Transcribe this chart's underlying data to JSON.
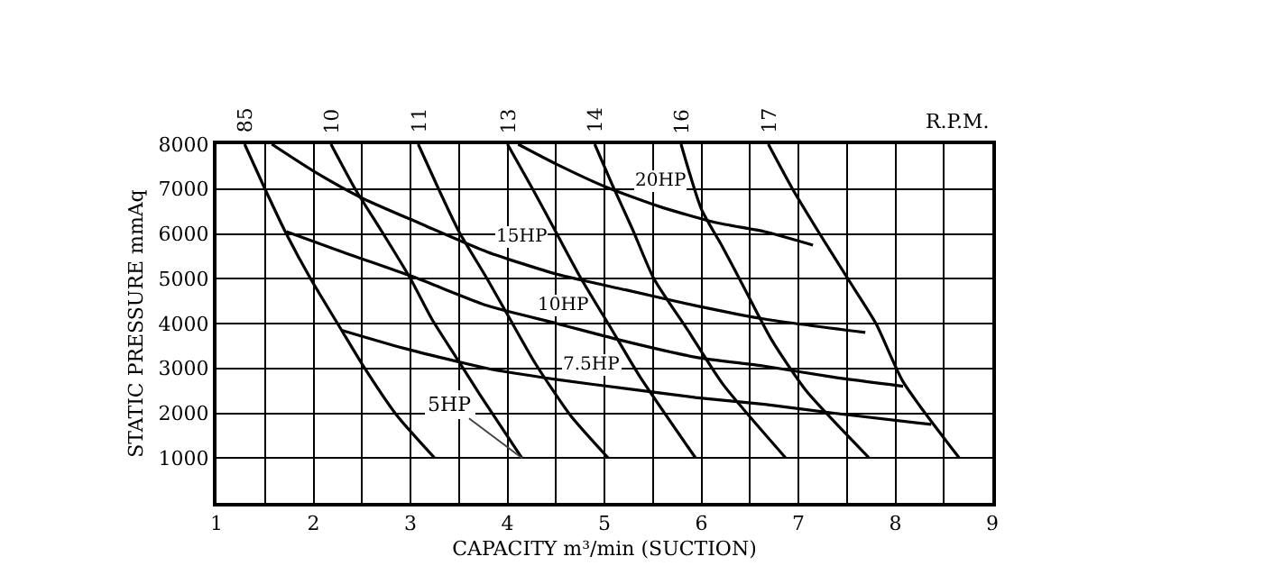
{
  "chart_data": {
    "type": "line",
    "xlabel": "CAPACITY m³/min (SUCTION)",
    "ylabel": "STATIC PRESSURE mmAq",
    "xlim": [
      1,
      9
    ],
    "ylim": [
      0,
      8000
    ],
    "xticks": [
      1,
      {
        "value": 1.5,
        "label": null
      },
      2,
      {
        "value": 2.5,
        "label": null
      },
      3,
      {
        "value": 3.5,
        "label": null
      },
      4,
      {
        "value": 4.5,
        "label": null
      },
      5,
      {
        "value": 5.5,
        "label": null
      },
      6,
      {
        "value": 6.5,
        "label": null
      },
      7,
      {
        "value": 7.5,
        "label": null
      },
      8,
      {
        "value": 8.5,
        "label": null
      },
      9
    ],
    "yticks": [
      1000,
      2000,
      3000,
      4000,
      5000,
      6000,
      7000,
      8000
    ],
    "grid": true,
    "legend": false,
    "marker": "none",
    "line_style": "solid",
    "color": "#000000",
    "series": [
      {
        "name": "20HP",
        "x": [
          4.11,
          4.51,
          5.01,
          5.58,
          6.15,
          6.65,
          7.15
        ],
        "values": [
          8000,
          7550,
          7050,
          6600,
          6250,
          6050,
          5750
        ]
      },
      {
        "name": "15HP",
        "x": [
          1.57,
          2.0,
          2.5,
          3.08,
          3.79,
          4.51,
          5.22,
          5.94,
          6.65,
          7.69
        ],
        "values": [
          8000,
          7400,
          6800,
          6250,
          5600,
          5100,
          4750,
          4400,
          4100,
          3800
        ]
      },
      {
        "name": "10HP",
        "x": [
          1.72,
          2.36,
          3.08,
          3.79,
          4.51,
          5.22,
          5.94,
          6.65,
          7.37,
          8.08
        ],
        "values": [
          6050,
          5550,
          5000,
          4400,
          4000,
          3600,
          3250,
          3050,
          2800,
          2600
        ]
      },
      {
        "name": "7.5HP",
        "x": [
          2.29,
          2.93,
          3.79,
          4.51,
          5.22,
          5.94,
          6.65,
          7.37,
          8.37
        ],
        "values": [
          3850,
          3450,
          3000,
          2750,
          2550,
          2350,
          2200,
          2000,
          1750
        ]
      },
      {
        "name": "85",
        "x": [
          1.29,
          1.5,
          1.72,
          1.97,
          2.29,
          2.5,
          2.86,
          3.25
        ],
        "values": [
          8000,
          7000,
          6000,
          5000,
          3850,
          3100,
          1950,
          1000
        ]
      },
      {
        "name": "10",
        "x": [
          2.18,
          2.43,
          2.72,
          3.0,
          3.22,
          3.47,
          3.72,
          4.15
        ],
        "values": [
          8000,
          7000,
          6000,
          5000,
          4100,
          3250,
          2400,
          1000
        ]
      },
      {
        "name": "11",
        "x": [
          3.08,
          3.29,
          3.5,
          3.79,
          4.0,
          4.29,
          4.65,
          5.04
        ],
        "values": [
          8000,
          7000,
          6050,
          5000,
          4200,
          3100,
          1950,
          1000
        ]
      },
      {
        "name": "13",
        "x": [
          4.0,
          4.26,
          4.51,
          4.76,
          5.08,
          5.37,
          5.94
        ],
        "values": [
          8000,
          7000,
          6000,
          5000,
          3850,
          2800,
          1000
        ]
      },
      {
        "name": "14",
        "x": [
          4.9,
          5.08,
          5.29,
          5.51,
          5.86,
          6.22,
          6.87
        ],
        "values": [
          8000,
          7100,
          6100,
          5000,
          3850,
          2650,
          1000
        ]
      },
      {
        "name": "16",
        "x": [
          5.79,
          6.0,
          6.22,
          6.44,
          6.72,
          7.08,
          7.73
        ],
        "values": [
          8000,
          6550,
          5700,
          4800,
          3650,
          2500,
          1000
        ]
      },
      {
        "name": "17",
        "x": [
          6.69,
          6.94,
          7.22,
          7.51,
          7.8,
          8.08,
          8.66
        ],
        "values": [
          8000,
          7000,
          6000,
          5000,
          4000,
          2700,
          1000
        ]
      }
    ],
    "annotations": [
      "R.P.M.",
      {
        "text": "5HP",
        "x": 4.15,
        "y": 1000
      }
    ]
  }
}
